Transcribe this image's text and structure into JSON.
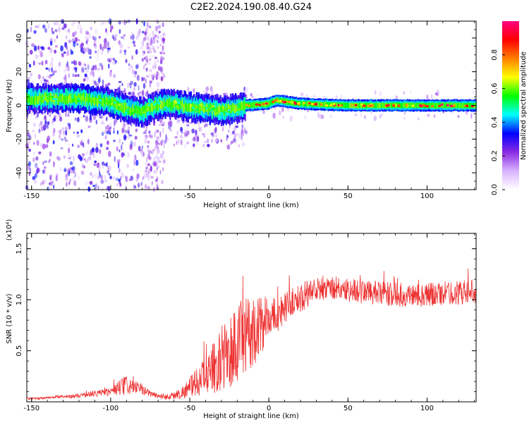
{
  "title": "C2E2.2024.190.08.40.G24",
  "chart_data": [
    {
      "type": "heatmap",
      "xlabel": "Height of straight line (km)",
      "ylabel": "Frequency (Hz)",
      "xlim": [
        -153,
        131
      ],
      "ylim": [
        -50,
        50
      ],
      "xticks": [
        -150,
        -100,
        -50,
        0,
        50,
        100
      ],
      "xtick_labels": [
        "-150",
        "-100",
        "-50",
        "0",
        "50",
        "100"
      ],
      "yticks": [
        -40,
        -20,
        0,
        20,
        40
      ],
      "ytick_labels": [
        "-40",
        "-20",
        "0",
        "20",
        "40"
      ],
      "colorbar": {
        "label": "Normalized spectral amplitude",
        "range": [
          0,
          1
        ],
        "ticks": [
          0,
          0.2,
          0.4,
          0.6,
          0.8
        ],
        "tick_labels": [
          "0.0",
          "0.2",
          "0.4",
          "0.6",
          "0.8"
        ],
        "colormap": [
          "#ffffff",
          "#d9b3ff",
          "#8a2be2",
          "#0000ff",
          "#00ffff",
          "#00ff00",
          "#ffff00",
          "#ff8000",
          "#ff0000",
          "#ff0080"
        ]
      },
      "band": {
        "ridge_frequency_hz": [
          [
            -140,
            4
          ],
          [
            -120,
            4
          ],
          [
            -100,
            2
          ],
          [
            -90,
            -2
          ],
          [
            -80,
            -4
          ],
          [
            -70,
            0
          ],
          [
            -60,
            1
          ],
          [
            -50,
            -1
          ],
          [
            -40,
            -2
          ],
          [
            -30,
            -3
          ],
          [
            -20,
            -2
          ],
          [
            -15,
            0
          ],
          [
            0,
            1
          ],
          [
            5,
            3
          ],
          [
            20,
            1
          ],
          [
            50,
            0
          ],
          [
            80,
            0
          ],
          [
            100,
            0
          ],
          [
            131,
            0
          ]
        ],
        "peak_region_km": [
          0,
          131
        ]
      }
    },
    {
      "type": "line",
      "xlabel": "Height of straight line (km)",
      "ylabel": "SNR (10 * v/v)",
      "y_multiplier": "(x10⁴)",
      "xlim": [
        -153,
        131
      ],
      "ylim": [
        0,
        1.65
      ],
      "xticks": [
        -150,
        -100,
        -50,
        0,
        50,
        100
      ],
      "xtick_labels": [
        "-150",
        "-100",
        "-50",
        "0",
        "50",
        "100"
      ],
      "yticks": [
        0.5,
        1.0,
        1.5
      ],
      "ytick_labels": [
        "0.5",
        "1.0",
        "1.5"
      ],
      "color": "#ee3333",
      "x": [
        -153,
        -140,
        -120,
        -110,
        -100,
        -95,
        -90,
        -85,
        -80,
        -75,
        -70,
        -65,
        -60,
        -55,
        -50,
        -45,
        -40,
        -35,
        -30,
        -25,
        -20,
        -15,
        -10,
        -5,
        0,
        5,
        10,
        15,
        20,
        25,
        30,
        35,
        40,
        50,
        60,
        70,
        80,
        90,
        100,
        110,
        120,
        131
      ],
      "y": [
        0.03,
        0.04,
        0.06,
        0.08,
        0.1,
        0.13,
        0.16,
        0.14,
        0.12,
        0.08,
        0.06,
        0.05,
        0.06,
        0.09,
        0.14,
        0.2,
        0.26,
        0.33,
        0.42,
        0.48,
        0.56,
        0.62,
        0.7,
        0.75,
        0.8,
        0.86,
        0.92,
        0.98,
        1.02,
        1.06,
        1.1,
        1.12,
        1.12,
        1.1,
        1.08,
        1.06,
        1.05,
        1.04,
        1.05,
        1.06,
        1.07,
        1.08
      ],
      "noise_amplitude": [
        0.01,
        0.01,
        0.02,
        0.03,
        0.04,
        0.08,
        0.1,
        0.07,
        0.05,
        0.03,
        0.03,
        0.03,
        0.04,
        0.06,
        0.1,
        0.14,
        0.18,
        0.25,
        0.32,
        0.38,
        0.42,
        0.4,
        0.36,
        0.28,
        0.22,
        0.18,
        0.15,
        0.14,
        0.14,
        0.14,
        0.14,
        0.13,
        0.12,
        0.12,
        0.12,
        0.12,
        0.12,
        0.12,
        0.12,
        0.12,
        0.12,
        0.12
      ]
    }
  ]
}
